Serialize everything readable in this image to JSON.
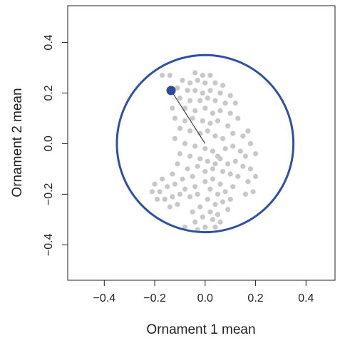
{
  "chart_data": {
    "type": "scatter",
    "xlabel": "Ornament 1 mean",
    "ylabel": "Ornament 2 mean",
    "xlim": [
      -0.545,
      0.515
    ],
    "ylim": [
      -0.54,
      0.545
    ],
    "xticks": [
      {
        "value": -0.4,
        "label": "−0.4"
      },
      {
        "value": -0.2,
        "label": "−0.2"
      },
      {
        "value": 0,
        "label": "0.0"
      },
      0.2,
      0.4
    ],
    "yticks": [
      {
        "value": -0.4,
        "label": "−0.4"
      },
      {
        "value": -0.2,
        "label": "−0.2"
      },
      {
        "value": 0,
        "label": "0.0"
      },
      0.2,
      0.4
    ],
    "circle": {
      "radius": 0.35,
      "color": "#3050a0"
    },
    "series": [
      {
        "color": "#c8c8c8",
        "x": [
          -0.17,
          -0.14,
          -0.04,
          -0.01,
          0.02,
          -0.09,
          -0.06,
          -0.03,
          0.0,
          0.04,
          0.07,
          -0.11,
          -0.07,
          -0.04,
          -0.01,
          0.02,
          0.06,
          0.1,
          -0.1,
          -0.06,
          -0.02,
          0.01,
          0.04,
          0.08,
          0.12,
          -0.13,
          -0.08,
          -0.04,
          0.0,
          0.03,
          0.06,
          0.1,
          0.13,
          -0.12,
          -0.08,
          -0.05,
          -0.01,
          0.02,
          0.05,
          0.09,
          -0.1,
          -0.06,
          -0.02,
          0.01,
          0.04,
          0.07,
          0.11,
          0.15,
          0.17,
          0.18,
          -0.12,
          -0.08,
          -0.04,
          0.0,
          0.03,
          0.05,
          0.08,
          0.11,
          0.14,
          0.16,
          0.2,
          -0.1,
          -0.06,
          -0.02,
          0.01,
          0.04,
          0.06,
          0.09,
          0.12,
          0.15,
          0.18,
          0.2,
          -0.11,
          -0.07,
          -0.03,
          0.0,
          0.03,
          0.07,
          0.1,
          0.13,
          0.17,
          0.19,
          0.16,
          -0.05,
          -0.09,
          -0.13,
          -0.17,
          -0.2,
          -0.21,
          -0.18,
          -0.15,
          -0.12,
          -0.08,
          -0.04,
          -0.19,
          -0.16,
          -0.13,
          -0.1,
          -0.06,
          -0.03,
          -0.14,
          -0.11,
          0.0,
          0.03,
          0.06,
          0.02,
          0.05,
          0.08,
          0.11,
          0.01,
          0.04,
          0.07,
          0.1,
          -0.02,
          0.02,
          0.05,
          0.09,
          -0.05,
          -0.01,
          0.03,
          0.06,
          -0.04,
          0.0,
          0.04,
          -0.08,
          -0.03
        ],
        "values": [
          0.27,
          0.27,
          0.28,
          0.27,
          0.27,
          0.25,
          0.24,
          0.25,
          0.24,
          0.24,
          0.23,
          0.22,
          0.21,
          0.21,
          0.2,
          0.21,
          0.2,
          0.19,
          0.18,
          0.17,
          0.17,
          0.18,
          0.17,
          0.16,
          0.16,
          0.14,
          0.14,
          0.13,
          0.14,
          0.12,
          0.13,
          0.12,
          0.1,
          0.1,
          0.09,
          0.1,
          0.09,
          0.08,
          0.09,
          0.07,
          0.06,
          0.05,
          0.04,
          0.05,
          0.03,
          0.02,
          0.04,
          0.03,
          0.05,
          0.0,
          0.02,
          0.0,
          -0.01,
          -0.02,
          -0.03,
          -0.05,
          -0.02,
          -0.01,
          -0.03,
          -0.05,
          -0.04,
          -0.04,
          -0.05,
          -0.06,
          -0.07,
          -0.08,
          -0.06,
          -0.08,
          -0.07,
          -0.09,
          -0.1,
          -0.13,
          -0.08,
          -0.1,
          -0.09,
          -0.11,
          -0.1,
          -0.11,
          -0.12,
          -0.13,
          -0.15,
          -0.19,
          -0.2,
          -0.13,
          -0.14,
          -0.12,
          -0.14,
          -0.16,
          -0.19,
          -0.19,
          -0.17,
          -0.16,
          -0.18,
          -0.17,
          -0.22,
          -0.22,
          -0.21,
          -0.2,
          -0.21,
          -0.2,
          -0.25,
          -0.24,
          -0.15,
          -0.14,
          -0.16,
          -0.18,
          -0.2,
          -0.19,
          -0.17,
          -0.22,
          -0.24,
          -0.23,
          -0.22,
          -0.25,
          -0.27,
          -0.28,
          -0.26,
          -0.27,
          -0.29,
          -0.3,
          -0.31,
          -0.31,
          -0.33,
          -0.33,
          -0.33,
          -0.34
        ]
      },
      {
        "color": "#2e4a9e",
        "x": [
          -0.135
        ],
        "values": [
          0.21
        ],
        "highlight": true
      }
    ]
  }
}
